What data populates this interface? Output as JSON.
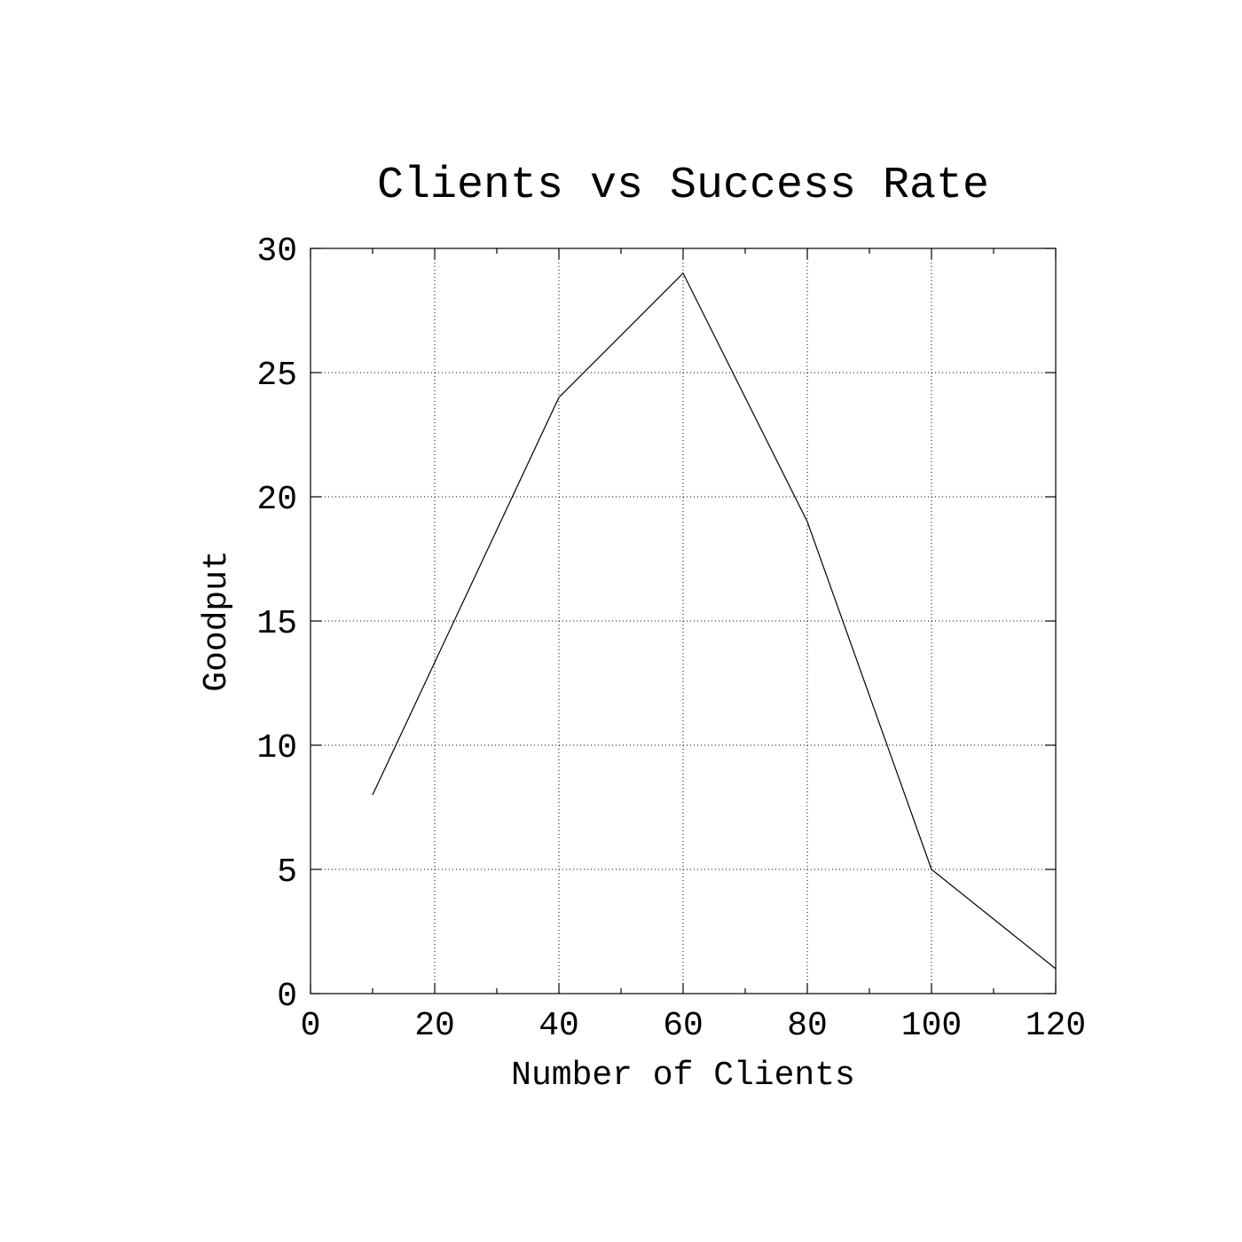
{
  "chart_data": {
    "type": "line",
    "title": "Clients vs Success Rate",
    "xlabel": "Number of Clients",
    "ylabel": "Goodput",
    "xlim": [
      0,
      120
    ],
    "ylim": [
      0,
      30
    ],
    "xticks": [
      0,
      20,
      40,
      60,
      80,
      100,
      120
    ],
    "xtick_labels": [
      "0",
      "20",
      "40",
      "60",
      "80",
      "100",
      "120"
    ],
    "xminor_ticks": [
      10,
      30,
      50,
      70,
      90,
      110
    ],
    "yticks": [
      0,
      5,
      10,
      15,
      20,
      25,
      30
    ],
    "ytick_labels": [
      "0",
      "5",
      "10",
      "15",
      "20",
      "25",
      "30"
    ],
    "grid": true,
    "legend": "none",
    "series": [
      {
        "name": "Goodput",
        "x": [
          10,
          40,
          60,
          80,
          100,
          120
        ],
        "values": [
          8,
          24,
          29,
          19,
          5,
          1
        ],
        "color": "#000000"
      }
    ]
  }
}
